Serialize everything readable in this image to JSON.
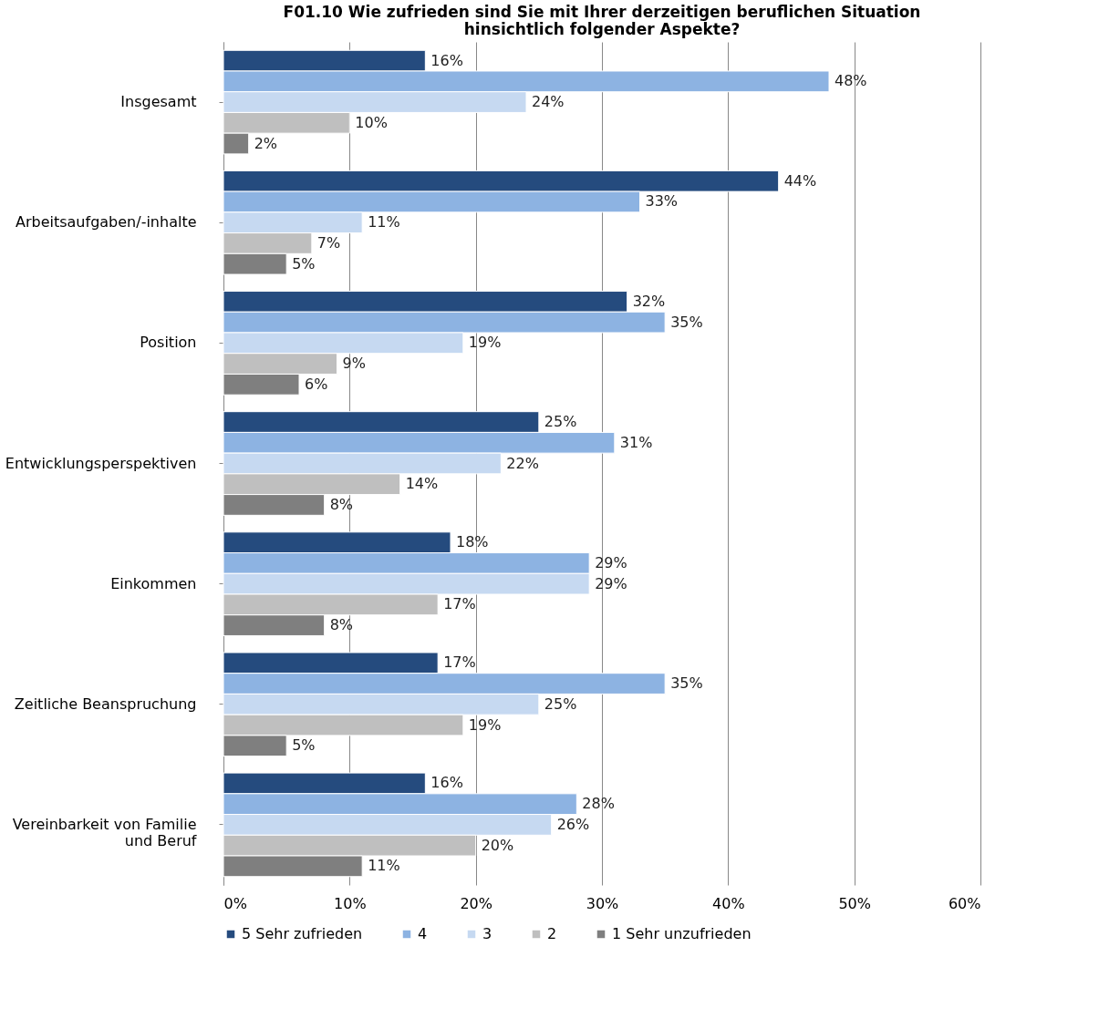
{
  "chart_data": {
    "type": "bar",
    "orientation": "horizontal",
    "title": "F01.10 Wie zufrieden sind Sie mit Ihrer derzeitigen beruflichen Situation hinsichtlich folgender Aspekte?",
    "categories": [
      "Insgesamt",
      "Arbeitsaufgaben/-inhalte",
      "Position",
      "Entwicklungsperspektiven",
      "Einkommen",
      "Zeitliche Beanspruchung",
      "Vereinbarkeit von Familie und Beruf"
    ],
    "series": [
      {
        "name": "5 Sehr zufrieden",
        "color": "#254b7e",
        "values": [
          16,
          44,
          32,
          25,
          18,
          17,
          16
        ],
        "value_labels": [
          "16%",
          "44%",
          "32%",
          "25%",
          "18%",
          "17%",
          "16%"
        ]
      },
      {
        "name": "4",
        "color": "#8db3e2",
        "values": [
          48,
          33,
          35,
          31,
          29,
          35,
          28
        ],
        "value_labels": [
          "48%",
          "33%",
          "35%",
          "31%",
          "29%",
          "35%",
          "28%"
        ]
      },
      {
        "name": "3",
        "color": "#c6d9f1",
        "values": [
          24,
          11,
          19,
          22,
          29,
          25,
          26
        ],
        "value_labels": [
          "24%",
          "11%",
          "19%",
          "22%",
          "29%",
          "25%",
          "26%"
        ]
      },
      {
        "name": "2",
        "color": "#bfbfbf",
        "values": [
          10,
          7,
          9,
          14,
          17,
          19,
          20
        ],
        "value_labels": [
          "10%",
          "7%",
          "9%",
          "14%",
          "17%",
          "19%",
          "20%"
        ]
      },
      {
        "name": "1 Sehr unzufrieden",
        "color": "#7f7f7f",
        "values": [
          2,
          5,
          6,
          8,
          8,
          5,
          11
        ],
        "value_labels": [
          "2%",
          "5%",
          "6%",
          "8%",
          "8%",
          "5%",
          "11%"
        ]
      }
    ],
    "xlim": [
      0,
      60
    ],
    "xticks": [
      {
        "value": 0,
        "label": "0%"
      },
      {
        "value": 10,
        "label": "10%"
      },
      {
        "value": 20,
        "label": "20%"
      },
      {
        "value": 30,
        "label": "30%"
      },
      {
        "value": 40,
        "label": "40%"
      },
      {
        "value": 50,
        "label": "50%"
      },
      {
        "value": 60,
        "label": "60%"
      }
    ],
    "grid": "x",
    "legend": "bottom"
  }
}
